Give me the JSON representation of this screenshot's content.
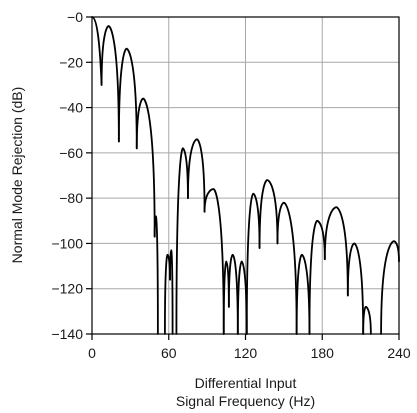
{
  "chart_data": {
    "type": "line",
    "xlabel_line1": "Differential Input",
    "xlabel_line2": "Signal Frequency (Hz)",
    "ylabel": "Normal Mode Rejection (dB)",
    "xlim": [
      0,
      240
    ],
    "ylim": [
      -140,
      0
    ],
    "grid": true,
    "x_ticks": [
      {
        "value": 0,
        "label": "0"
      },
      {
        "value": 60,
        "label": "60"
      },
      {
        "value": 120,
        "label": "120"
      },
      {
        "value": 180,
        "label": "180"
      },
      {
        "value": 240,
        "label": "240"
      }
    ],
    "y_ticks": [
      {
        "value": 0,
        "label": "−0"
      },
      {
        "value": -20,
        "label": "−20"
      },
      {
        "value": -40,
        "label": "−40"
      },
      {
        "value": -60,
        "label": "−60"
      },
      {
        "value": -80,
        "label": "−80"
      },
      {
        "value": -100,
        "label": "−100"
      },
      {
        "value": -120,
        "label": "−120"
      },
      {
        "value": -140,
        "label": "−140"
      }
    ],
    "series": [
      {
        "color": "#000000",
        "lobes": [
          {
            "x_start": 0,
            "x_end": 7.5,
            "peak_x": 0,
            "peak": 0,
            "null_start": 0,
            "null_end": -30
          },
          {
            "x_start": 7.5,
            "x_end": 21,
            "peak_x": 13,
            "peak": -4,
            "null_start": -30,
            "null_end": -55
          },
          {
            "x_start": 21,
            "x_end": 35,
            "peak_x": 27,
            "peak": -14,
            "null_start": -55,
            "null_end": -58
          },
          {
            "x_start": 35,
            "x_end": 49,
            "peak_x": 40,
            "peak": -36,
            "null_start": -58,
            "null_end": -97
          },
          {
            "x_start": 49,
            "x_end": 51.5,
            "peak_x": 50,
            "peak": -88,
            "null_start": -97,
            "null_end": -140
          },
          {
            "x_start": 57,
            "x_end": 61,
            "peak_x": 59,
            "peak": -105,
            "null_start": -140,
            "null_end": -116
          },
          {
            "x_start": 61,
            "x_end": 63,
            "peak_x": 62,
            "peak": -103,
            "null_start": -116,
            "null_end": -140
          },
          {
            "x_start": 66,
            "x_end": 75,
            "peak_x": 71,
            "peak": -58,
            "null_start": -140,
            "null_end": -80
          },
          {
            "x_start": 75,
            "x_end": 88,
            "peak_x": 82,
            "peak": -54,
            "null_start": -80,
            "null_end": -86
          },
          {
            "x_start": 88,
            "x_end": 103,
            "peak_x": 95,
            "peak": -76,
            "null_start": -86,
            "null_end": -140
          },
          {
            "x_start": 103,
            "x_end": 107,
            "peak_x": 105,
            "peak": -108,
            "null_start": -140,
            "null_end": -128
          },
          {
            "x_start": 107,
            "x_end": 114,
            "peak_x": 110,
            "peak": -105,
            "null_start": -128,
            "null_end": -140
          },
          {
            "x_start": 114,
            "x_end": 121,
            "peak_x": 117,
            "peak": -108,
            "null_start": -140,
            "null_end": -140
          },
          {
            "x_start": 121,
            "x_end": 131,
            "peak_x": 126,
            "peak": -78,
            "null_start": -140,
            "null_end": -102
          },
          {
            "x_start": 131,
            "x_end": 145,
            "peak_x": 137,
            "peak": -72,
            "null_start": -102,
            "null_end": -100
          },
          {
            "x_start": 145,
            "x_end": 160,
            "peak_x": 150,
            "peak": -82,
            "null_start": -100,
            "null_end": -140
          },
          {
            "x_start": 160,
            "x_end": 170,
            "peak_x": 164,
            "peak": -105,
            "null_start": -140,
            "null_end": -140
          },
          {
            "x_start": 170,
            "x_end": 182,
            "peak_x": 176,
            "peak": -90,
            "null_start": -140,
            "null_end": -107
          },
          {
            "x_start": 182,
            "x_end": 200,
            "peak_x": 191,
            "peak": -84,
            "null_start": -107,
            "null_end": -123
          },
          {
            "x_start": 200,
            "x_end": 212,
            "peak_x": 205,
            "peak": -100,
            "null_start": -123,
            "null_end": -140
          },
          {
            "x_start": 212,
            "x_end": 218,
            "peak_x": 214,
            "peak": -128,
            "null_start": -140,
            "null_end": -140
          },
          {
            "x_start": 226,
            "x_end": 240,
            "peak_x": 236,
            "peak": -99,
            "null_start": -140,
            "null_end": -108
          }
        ]
      }
    ]
  }
}
